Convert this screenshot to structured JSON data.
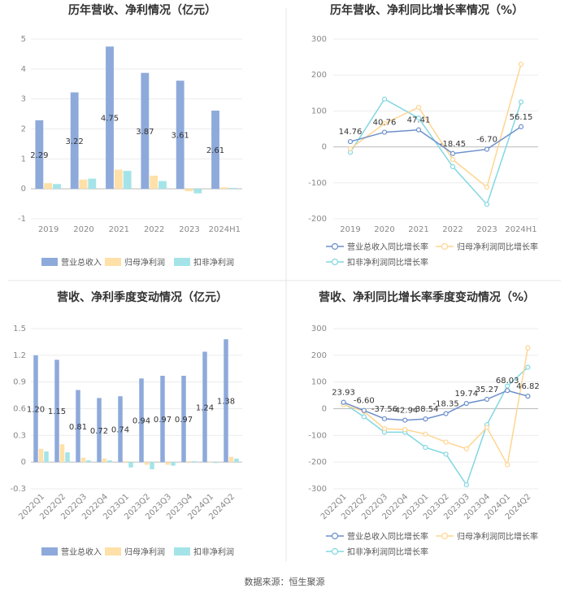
{
  "source": "数据来源：恒生聚源",
  "chart_data": [
    {
      "type": "bar",
      "title": "历年营收、净利情况（亿元）",
      "categories": [
        "2019",
        "2020",
        "2021",
        "2022",
        "2023",
        "2024H1"
      ],
      "ylim": [
        -1,
        5
      ],
      "yticks": [
        "-1",
        "0",
        "1",
        "2",
        "3",
        "4",
        "5"
      ],
      "series": [
        {
          "name": "营业总收入",
          "values": [
            2.29,
            3.22,
            4.75,
            3.87,
            3.61,
            2.61
          ],
          "color": "#8eaadb",
          "labels": [
            "2.29",
            "3.22",
            "4.75",
            "3.87",
            "3.61",
            "2.61"
          ]
        },
        {
          "name": "归母净利润",
          "values": [
            0.19,
            0.31,
            0.64,
            0.44,
            -0.08,
            0.05
          ],
          "color": "#ffe0a8"
        },
        {
          "name": "扣非净利润",
          "values": [
            0.16,
            0.34,
            0.6,
            0.26,
            -0.15,
            0.03
          ],
          "color": "#a4e4e8"
        }
      ]
    },
    {
      "type": "line",
      "title": "历年营收、净利同比增长率情况（%）",
      "categories": [
        "2019",
        "2020",
        "2021",
        "2022",
        "2023",
        "2024H1"
      ],
      "ylim": [
        -200,
        300
      ],
      "yticks": [
        "-200",
        "-100",
        "0",
        "100",
        "200",
        "300"
      ],
      "series": [
        {
          "name": "营业总收入同比增长率",
          "values": [
            14.76,
            40.76,
            47.41,
            -18.45,
            -6.7,
            56.15
          ],
          "color": "#6d8fcb",
          "labels": [
            "14.76",
            "40.76",
            "47.41",
            "-18.45",
            "-6.70",
            "56.15"
          ]
        },
        {
          "name": "归母净利润同比增长率",
          "values": [
            -5,
            65,
            110,
            -35,
            -112,
            230
          ],
          "color": "#ffd591"
        },
        {
          "name": "扣非净利润同比增长率",
          "values": [
            -15,
            133,
            80,
            -55,
            -160,
            125
          ],
          "color": "#82d7e2"
        }
      ]
    },
    {
      "type": "bar",
      "title": "营收、净利季度变动情况（亿元）",
      "categories": [
        "2022Q1",
        "2022Q2",
        "2022Q3",
        "2022Q4",
        "2023Q1",
        "2023Q2",
        "2023Q3",
        "2023Q4",
        "2024Q1",
        "2024Q2"
      ],
      "ylim": [
        -0.3,
        1.5
      ],
      "yticks": [
        "-0.3",
        "0",
        "0.3",
        "0.6",
        "0.9",
        "1.2",
        "1.5"
      ],
      "series": [
        {
          "name": "营业总收入",
          "values": [
            1.2,
            1.15,
            0.81,
            0.72,
            0.74,
            0.94,
            0.97,
            0.97,
            1.24,
            1.38
          ],
          "color": "#8eaadb",
          "labels": [
            "1.20",
            "1.15",
            "0.81",
            "0.72",
            "0.74",
            "0.94",
            "0.97",
            "0.97",
            "1.24",
            "1.38"
          ]
        },
        {
          "name": "归母净利润",
          "values": [
            0.15,
            0.2,
            0.05,
            0.04,
            0.01,
            -0.03,
            -0.03,
            0.01,
            0.0,
            0.06
          ],
          "color": "#ffe0a8"
        },
        {
          "name": "扣非净利润",
          "values": [
            0.12,
            0.11,
            0.02,
            0.02,
            -0.06,
            -0.08,
            -0.04,
            0.01,
            -0.01,
            0.04
          ],
          "color": "#a4e4e8"
        }
      ]
    },
    {
      "type": "line",
      "title": "营收、净利同比增长率季度变动情况（%）",
      "categories": [
        "2022Q1",
        "2022Q2",
        "2022Q3",
        "2022Q4",
        "2023Q1",
        "2023Q2",
        "2023Q3",
        "2023Q4",
        "2024Q1",
        "2024Q2"
      ],
      "ylim": [
        -300,
        300
      ],
      "yticks": [
        "-300",
        "-200",
        "-100",
        "0",
        "100",
        "200",
        "300"
      ],
      "series": [
        {
          "name": "营业总收入同比增长率",
          "values": [
            23.93,
            -6.6,
            -37.56,
            -42.94,
            -38.54,
            -18.35,
            19.74,
            35.27,
            68.03,
            46.82
          ],
          "color": "#6d8fcb",
          "labels": [
            "23.93",
            "-6.60",
            "-37.56",
            "-42.94",
            "-38.54",
            "-18.35",
            "19.74",
            "35.27",
            "68.03",
            "46.82"
          ]
        },
        {
          "name": "归母净利润同比增长率",
          "values": [
            15,
            -10,
            -75,
            -78,
            -95,
            -125,
            -150,
            -70,
            -210,
            228
          ],
          "color": "#ffd591"
        },
        {
          "name": "扣非净利润同比增长率",
          "values": [
            20,
            -30,
            -88,
            -88,
            -145,
            -170,
            -285,
            -60,
            85,
            155
          ],
          "color": "#82d7e2"
        }
      ]
    }
  ]
}
